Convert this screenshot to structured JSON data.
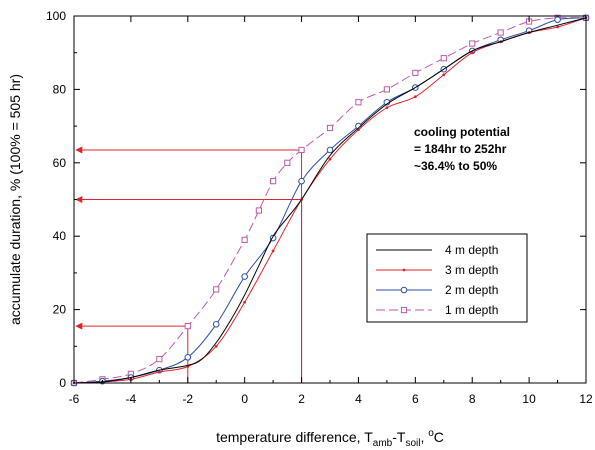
{
  "chart_data": {
    "type": "line",
    "xlabel_parts": [
      "temperature difference, T",
      "amb",
      "-T",
      "soil",
      ", ",
      "o",
      "C"
    ],
    "ylabel": "accumulate duration, % (100% = 505 hr)",
    "xlim": [
      -6,
      12
    ],
    "ylim": [
      0,
      100
    ],
    "xticks": [
      "-6",
      "-4",
      "-2",
      "0",
      "2",
      "4",
      "6",
      "8",
      "10",
      "12"
    ],
    "yticks": [
      "0",
      "20",
      "40",
      "60",
      "80",
      "100"
    ],
    "grid": false,
    "legend_position": "right-middle",
    "annotation": [
      "cooling potential",
      "= 184hr to 252hr",
      "~36.4% to 50%"
    ],
    "series": [
      {
        "name": "4 m depth",
        "color": "#000000",
        "marker": "none",
        "dash": "solid",
        "x": [
          -6,
          -5,
          -4,
          -3,
          -2,
          -1.5,
          -1,
          -0.5,
          0,
          0.5,
          1,
          1.5,
          2,
          3,
          4,
          5,
          6,
          7,
          8,
          9,
          10,
          11,
          12
        ],
        "y": [
          0,
          0.3,
          1.5,
          3.5,
          4.8,
          6.5,
          11,
          17,
          24,
          32,
          40,
          45,
          50,
          62,
          69.5,
          76,
          80.5,
          85.5,
          90.5,
          93,
          95.5,
          97.5,
          99.5
        ]
      },
      {
        "name": "3 m depth",
        "color": "#e0242b",
        "marker": "dot",
        "dash": "solid",
        "x": [
          -6,
          -5,
          -4,
          -3,
          -2,
          -1,
          0,
          1,
          2,
          3,
          4,
          5,
          6,
          7,
          8,
          9,
          10,
          11,
          12
        ],
        "y": [
          0,
          0.3,
          1,
          3,
          4.5,
          10,
          22,
          36,
          50,
          61,
          69,
          75,
          78,
          84,
          90,
          93,
          95.5,
          97,
          99.5
        ]
      },
      {
        "name": "2 m depth",
        "color": "#2b4fa8",
        "marker": "circle",
        "dash": "solid",
        "x": [
          -6,
          -5,
          -4,
          -3,
          -2,
          -1,
          0,
          1,
          2,
          3,
          4,
          5,
          6,
          7,
          8,
          9,
          10,
          11,
          12
        ],
        "y": [
          0,
          0.5,
          1.5,
          3.5,
          7,
          16,
          29,
          39.5,
          55,
          63.5,
          70,
          76.5,
          80.5,
          85.5,
          90.5,
          93.5,
          96,
          99,
          99.5
        ]
      },
      {
        "name": "1 m depth",
        "color": "#c05aa8",
        "marker": "square",
        "dash": "dash",
        "x": [
          -6,
          -5,
          -4,
          -3,
          -2,
          -1,
          0,
          0.5,
          1,
          1.5,
          2,
          3,
          4,
          5,
          6,
          7,
          8,
          9,
          10,
          11,
          12
        ],
        "y": [
          0,
          1,
          2.5,
          6.5,
          15.5,
          25.5,
          39,
          47,
          55,
          60,
          63.5,
          69.5,
          76.5,
          80,
          84.5,
          88.5,
          92.5,
          95.5,
          98.5,
          99.5,
          99.5
        ]
      }
    ],
    "reference_lines": {
      "color": "#e0242b",
      "points": [
        {
          "x": -2,
          "y": 15.5
        },
        {
          "x": 2,
          "y": 50
        },
        {
          "x": 2,
          "y": 63.5
        }
      ]
    }
  }
}
